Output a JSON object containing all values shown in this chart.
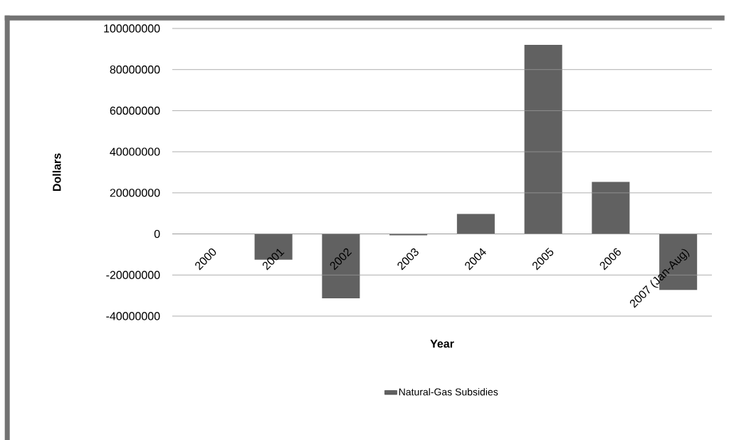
{
  "chart_data": {
    "type": "bar",
    "xlabel": "Year",
    "ylabel": "Dollars",
    "categories": [
      "2000",
      "2001",
      "2002",
      "2003",
      "2004",
      "2005",
      "2006",
      "2007 (Jan-Aug)"
    ],
    "series": [
      {
        "name": "Natural-Gas Subsidies",
        "color": "#616161",
        "values": [
          0,
          -12500000,
          -31300000,
          -700000,
          9700000,
          92000000,
          25300000,
          -27300000
        ]
      }
    ],
    "ylim": [
      -40000000,
      100000000
    ],
    "yticks": [
      -40000000,
      -20000000,
      0,
      20000000,
      40000000,
      60000000,
      80000000,
      100000000
    ],
    "grid": "y",
    "legend": "bottom"
  }
}
